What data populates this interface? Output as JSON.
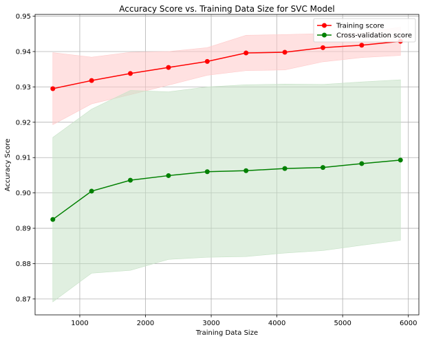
{
  "chart_data": {
    "type": "line",
    "title": "Accuracy Score vs. Training Data Size for SVC Model",
    "xlabel": "Training Data Size",
    "ylabel": "Accuracy Score",
    "xlim": [
      320,
      6160
    ],
    "ylim": [
      0.8655,
      0.9505
    ],
    "xticks": [
      1000,
      2000,
      3000,
      4000,
      5000,
      6000
    ],
    "yticks": [
      0.87,
      0.88,
      0.89,
      0.9,
      0.91,
      0.92,
      0.93,
      0.94,
      0.95
    ],
    "ytick_labels": [
      "0.87",
      "0.88",
      "0.89",
      "0.90",
      "0.91",
      "0.92",
      "0.93",
      "0.94",
      "0.95"
    ],
    "grid": true,
    "legend_position": "top-right",
    "x": [
      590,
      1180,
      1770,
      2350,
      2940,
      3530,
      4120,
      4700,
      5290,
      5880
    ],
    "series": [
      {
        "name": "Training score",
        "color": "#ff0000",
        "band_color": "#ffc9c9",
        "values": [
          0.9295,
          0.9318,
          0.9338,
          0.9355,
          0.9372,
          0.9396,
          0.9398,
          0.9411,
          0.9418,
          0.9429
        ],
        "lower": [
          0.9193,
          0.9252,
          0.9278,
          0.9305,
          0.9333,
          0.9346,
          0.9348,
          0.9371,
          0.9383,
          0.9389
        ],
        "upper": [
          0.9397,
          0.9384,
          0.9398,
          0.94,
          0.9411,
          0.9446,
          0.9448,
          0.9451,
          0.9453,
          0.9469
        ]
      },
      {
        "name": "Cross-validation score",
        "color": "#008000",
        "band_color": "#c6e2c6",
        "values": [
          0.8925,
          0.9005,
          0.9036,
          0.9049,
          0.906,
          0.9063,
          0.9069,
          0.9072,
          0.9083,
          0.9093
        ],
        "lower": [
          0.8692,
          0.8773,
          0.8781,
          0.8812,
          0.8818,
          0.882,
          0.883,
          0.8837,
          0.8852,
          0.8866
        ],
        "upper": [
          0.9157,
          0.9237,
          0.929,
          0.9286,
          0.93,
          0.9306,
          0.9308,
          0.9307,
          0.9314,
          0.932
        ]
      }
    ]
  }
}
